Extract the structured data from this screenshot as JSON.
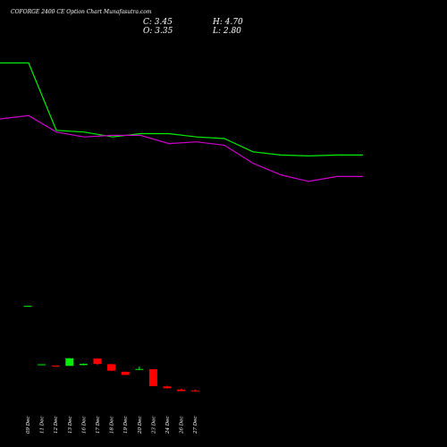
{
  "chart_data": {
    "type": "candlestick",
    "title": "COFORGE 2400  CE Option  Chart Munafasutra.com",
    "ohlc_summary": {
      "close": "C: 3.45",
      "high": "H: 4.70",
      "open": "O: 3.35",
      "low": "L: 2.80"
    },
    "categories": [
      "09 Dec",
      "11 Dec",
      "12 Dec",
      "13 Dec",
      "16 Dec",
      "17 Dec",
      "18 Dec",
      "19 Dec",
      "20 Dec",
      "23 Dec",
      "24 Dec",
      "26 Dec",
      "27 Dec"
    ],
    "candles": [
      {
        "date": "09 Dec",
        "open": 62.0,
        "close": 62.3,
        "high": 62.3,
        "low": 62.0
      },
      {
        "date": "11 Dec",
        "open": 9.2,
        "close": 10.0,
        "high": 10.1,
        "low": 9.1
      },
      {
        "date": "12 Dec",
        "open": 8.9,
        "close": 8.7,
        "high": 8.9,
        "low": 8.6
      },
      {
        "date": "13 Dec",
        "open": 8.6,
        "close": 15.4,
        "high": 15.6,
        "low": 8.5
      },
      {
        "date": "16 Dec",
        "open": 9.3,
        "close": 10.4,
        "high": 10.8,
        "low": 9.0
      },
      {
        "date": "17 Dec",
        "open": 15.1,
        "close": 10.3,
        "high": 15.4,
        "low": 9.2
      },
      {
        "date": "18 Dec",
        "open": 10.1,
        "close": 4.3,
        "high": 10.3,
        "low": 4.0
      },
      {
        "date": "19 Dec",
        "open": 3.3,
        "close": 0.5,
        "high": 3.6,
        "low": 0.3
      },
      {
        "date": "20 Dec",
        "open": 5.1,
        "close": 5.8,
        "high": 8.0,
        "low": 4.9
      },
      {
        "date": "23 Dec",
        "open": 5.6,
        "close": -9.5,
        "high": 5.6,
        "low": -9.6
      },
      {
        "date": "24 Dec",
        "open": -9.8,
        "close": -11.4,
        "high": -8.9,
        "low": -11.8
      },
      {
        "date": "26 Dec",
        "open": -12.6,
        "close": -14.0,
        "high": -12.0,
        "low": -14.1
      },
      {
        "date": "27 Dec",
        "open": -13.4,
        "close": -13.5,
        "high": -12.5,
        "low": -14.2
      }
    ],
    "series": [
      {
        "color": "#00ee00",
        "values": [
          190,
          190,
          149,
          148,
          145,
          147,
          147,
          145,
          144,
          136,
          134,
          133.5,
          134
        ]
      },
      {
        "color": "#cc00cc",
        "values": [
          156,
          158,
          148,
          145,
          146,
          146,
          141,
          142,
          140,
          129,
          122,
          118,
          121
        ]
      }
    ],
    "colors": {
      "up": "#00ee00",
      "down": "#ff0000",
      "background": "#000000",
      "text": "#ffffff"
    }
  }
}
